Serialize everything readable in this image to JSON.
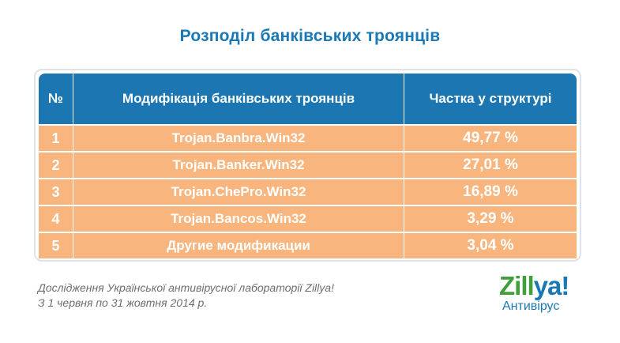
{
  "title": "Розподіл банківських троянців",
  "table": {
    "headers": [
      "№",
      "Модифікація банківських троянців",
      "Частка у структурі"
    ],
    "rows": [
      {
        "num": "1",
        "name": "Trojan.Banbra.Win32",
        "share": "49,77 %"
      },
      {
        "num": "2",
        "name": "Trojan.Banker.Win32",
        "share": "27,01 %"
      },
      {
        "num": "3",
        "name": "Trojan.ChePro.Win32",
        "share": "16,89 %"
      },
      {
        "num": "4",
        "name": "Trojan.Bancos.Win32",
        "share": "3,29 %"
      },
      {
        "num": "5",
        "name": "Другие модификации",
        "share": "3,04 %"
      }
    ]
  },
  "footnote": {
    "line1": "Дослідження Української антивірусної лабораторії Zillya!",
    "line2": "З 1 червня по 31 жовтня 2014 р."
  },
  "logo": {
    "brand_part1": "Zill",
    "brand_part2": "ya!",
    "subtitle": "Антивірус"
  },
  "colors": {
    "header_bg": "#1b76b1",
    "row_bg": "#f8b67e",
    "title": "#1a78b4",
    "logo_green": "#3fa03a"
  }
}
